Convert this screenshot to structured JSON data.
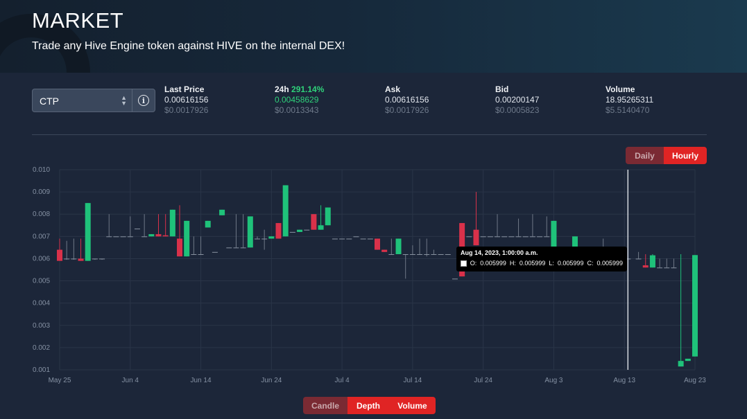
{
  "header": {
    "title": "MARKET",
    "subtitle": "Trade any Hive Engine token against HIVE on the internal DEX!"
  },
  "token": {
    "selected": "CTP"
  },
  "stats": [
    {
      "label": "Last Price",
      "pct": "",
      "value": "0.00616156",
      "usd": "$0.0017926"
    },
    {
      "label": "24h",
      "pct": "291.14%",
      "value": "0.00458629",
      "usd": "$0.0013343"
    },
    {
      "label": "Ask",
      "pct": "",
      "value": "0.00616156",
      "usd": "$0.0017926"
    },
    {
      "label": "Bid",
      "pct": "",
      "value": "0.00200147",
      "usd": "$0.0005823"
    },
    {
      "label": "Volume",
      "pct": "",
      "value": "18.95265311",
      "usd": "$5.5140470"
    }
  ],
  "interval_toggle": {
    "daily": "Daily",
    "hourly": "Hourly",
    "active": "Hourly"
  },
  "view_toggle": {
    "candle": "Candle",
    "depth": "Depth",
    "volume": "Volume",
    "active": "Depth"
  },
  "tooltip": {
    "title": "Aug 14, 2023, 1:00:00 a.m.",
    "o_label": "O:",
    "o": "0.005999",
    "h_label": "H:",
    "h": "0.005999",
    "l_label": "L:",
    "l": "0.005999",
    "c_label": "C:",
    "c": "0.005999"
  },
  "colors": {
    "up": "#1fc27a",
    "down": "#d9314a",
    "accent": "#e02424",
    "grid": "#2a3548"
  },
  "chart_data": {
    "type": "candlestick",
    "ylim": [
      0.001,
      0.01
    ],
    "yticks": [
      "0.010",
      "0.009",
      "0.008",
      "0.007",
      "0.006",
      "0.005",
      "0.004",
      "0.003",
      "0.002",
      "0.001"
    ],
    "xticks": [
      {
        "label": "May 25",
        "day": 0
      },
      {
        "label": "Jun 4",
        "day": 10
      },
      {
        "label": "Jun 14",
        "day": 20
      },
      {
        "label": "Jun 24",
        "day": 30
      },
      {
        "label": "Jul 4",
        "day": 40
      },
      {
        "label": "Jul 14",
        "day": 50
      },
      {
        "label": "Jul 24",
        "day": 60
      },
      {
        "label": "Aug 3",
        "day": 70
      },
      {
        "label": "Aug 13",
        "day": 80
      },
      {
        "label": "Aug 23",
        "day": 90
      }
    ],
    "crosshair_day": 80.5,
    "candles": [
      {
        "d": 0.0,
        "o": 0.0064,
        "h": 0.0069,
        "l": 0.0059,
        "c": 0.0059
      },
      {
        "d": 1.0,
        "o": 0.006,
        "h": 0.0068,
        "l": 0.00595,
        "c": 0.006
      },
      {
        "d": 2.0,
        "o": 0.006,
        "h": 0.0069,
        "l": 0.00595,
        "c": 0.006
      },
      {
        "d": 3.0,
        "o": 0.006,
        "h": 0.0069,
        "l": 0.0059,
        "c": 0.0059
      },
      {
        "d": 4.0,
        "o": 0.0059,
        "h": 0.0085,
        "l": 0.0059,
        "c": 0.0085
      },
      {
        "d": 5.0,
        "o": 0.006,
        "h": 0.006,
        "l": 0.00595,
        "c": 0.006
      },
      {
        "d": 6.0,
        "o": 0.006,
        "h": 0.006,
        "l": 0.00595,
        "c": 0.006
      },
      {
        "d": 7.0,
        "o": 0.007,
        "h": 0.008,
        "l": 0.007,
        "c": 0.007
      },
      {
        "d": 8.0,
        "o": 0.007,
        "h": 0.007,
        "l": 0.007,
        "c": 0.007
      },
      {
        "d": 9.0,
        "o": 0.007,
        "h": 0.007,
        "l": 0.007,
        "c": 0.007
      },
      {
        "d": 10.0,
        "o": 0.007,
        "h": 0.0079,
        "l": 0.007,
        "c": 0.007
      },
      {
        "d": 11.0,
        "o": 0.00735,
        "h": 0.00735,
        "l": 0.00735,
        "c": 0.00735
      },
      {
        "d": 12.0,
        "o": 0.007,
        "h": 0.008,
        "l": 0.007,
        "c": 0.007
      },
      {
        "d": 13.0,
        "o": 0.007,
        "h": 0.0071,
        "l": 0.007,
        "c": 0.0071
      },
      {
        "d": 14.0,
        "o": 0.0071,
        "h": 0.008,
        "l": 0.007,
        "c": 0.007
      },
      {
        "d": 15.0,
        "o": 0.00705,
        "h": 0.008,
        "l": 0.007,
        "c": 0.007
      },
      {
        "d": 16.0,
        "o": 0.007,
        "h": 0.0082,
        "l": 0.007,
        "c": 0.0082
      },
      {
        "d": 17.0,
        "o": 0.0069,
        "h": 0.0084,
        "l": 0.0061,
        "c": 0.0061
      },
      {
        "d": 18.0,
        "o": 0.0061,
        "h": 0.0077,
        "l": 0.0061,
        "c": 0.0077
      },
      {
        "d": 19.0,
        "o": 0.0062,
        "h": 0.007,
        "l": 0.0062,
        "c": 0.0062
      },
      {
        "d": 20.0,
        "o": 0.0062,
        "h": 0.007,
        "l": 0.0062,
        "c": 0.0062
      },
      {
        "d": 21.0,
        "o": 0.0074,
        "h": 0.0077,
        "l": 0.0074,
        "c": 0.0077
      },
      {
        "d": 22.0,
        "o": 0.0063,
        "h": 0.0063,
        "l": 0.0063,
        "c": 0.0063
      },
      {
        "d": 23.0,
        "o": 0.00795,
        "h": 0.0082,
        "l": 0.00795,
        "c": 0.0082
      },
      {
        "d": 24.0,
        "o": 0.0065,
        "h": 0.0065,
        "l": 0.0065,
        "c": 0.0065
      },
      {
        "d": 25.0,
        "o": 0.0065,
        "h": 0.008,
        "l": 0.0065,
        "c": 0.0065
      },
      {
        "d": 26.0,
        "o": 0.0065,
        "h": 0.008,
        "l": 0.0065,
        "c": 0.0065
      },
      {
        "d": 27.0,
        "o": 0.0065,
        "h": 0.0079,
        "l": 0.0065,
        "c": 0.0079
      },
      {
        "d": 28.0,
        "o": 0.0069,
        "h": 0.007,
        "l": 0.0069,
        "c": 0.0069
      },
      {
        "d": 29.0,
        "o": 0.0069,
        "h": 0.0073,
        "l": 0.0064,
        "c": 0.0069
      },
      {
        "d": 30.0,
        "o": 0.0069,
        "h": 0.007,
        "l": 0.0069,
        "c": 0.007
      },
      {
        "d": 31.0,
        "o": 0.0076,
        "h": 0.0076,
        "l": 0.0069,
        "c": 0.0069
      },
      {
        "d": 32.0,
        "o": 0.007,
        "h": 0.0093,
        "l": 0.007,
        "c": 0.0093
      },
      {
        "d": 33.0,
        "o": 0.0072,
        "h": 0.0072,
        "l": 0.0072,
        "c": 0.0072
      },
      {
        "d": 34.0,
        "o": 0.0072,
        "h": 0.0073,
        "l": 0.0072,
        "c": 0.0073
      },
      {
        "d": 35.0,
        "o": 0.0073,
        "h": 0.0073,
        "l": 0.0073,
        "c": 0.0073
      },
      {
        "d": 36.0,
        "o": 0.008,
        "h": 0.008,
        "l": 0.0073,
        "c": 0.0073
      },
      {
        "d": 37.0,
        "o": 0.0073,
        "h": 0.0084,
        "l": 0.0073,
        "c": 0.0075
      },
      {
        "d": 38.0,
        "o": 0.0075,
        "h": 0.0083,
        "l": 0.0075,
        "c": 0.0083
      },
      {
        "d": 39.0,
        "o": 0.0069,
        "h": 0.0069,
        "l": 0.0069,
        "c": 0.0069
      },
      {
        "d": 40.0,
        "o": 0.0069,
        "h": 0.0069,
        "l": 0.0069,
        "c": 0.0069
      },
      {
        "d": 41.0,
        "o": 0.0069,
        "h": 0.0069,
        "l": 0.0069,
        "c": 0.0069
      },
      {
        "d": 42.0,
        "o": 0.007,
        "h": 0.007,
        "l": 0.007,
        "c": 0.007
      },
      {
        "d": 43.0,
        "o": 0.0069,
        "h": 0.0069,
        "l": 0.0069,
        "c": 0.0069
      },
      {
        "d": 44.0,
        "o": 0.0069,
        "h": 0.0069,
        "l": 0.0069,
        "c": 0.0069
      },
      {
        "d": 45.0,
        "o": 0.0069,
        "h": 0.0069,
        "l": 0.0064,
        "c": 0.0064
      },
      {
        "d": 46.0,
        "o": 0.0064,
        "h": 0.0064,
        "l": 0.0063,
        "c": 0.0063
      },
      {
        "d": 47.0,
        "o": 0.0062,
        "h": 0.0069,
        "l": 0.0062,
        "c": 0.0062
      },
      {
        "d": 48.0,
        "o": 0.0062,
        "h": 0.0069,
        "l": 0.0062,
        "c": 0.0069
      },
      {
        "d": 49.0,
        "o": 0.0062,
        "h": 0.0062,
        "l": 0.0051,
        "c": 0.0062
      },
      {
        "d": 50.0,
        "o": 0.0062,
        "h": 0.0066,
        "l": 0.0062,
        "c": 0.0062
      },
      {
        "d": 51.0,
        "o": 0.0062,
        "h": 0.0069,
        "l": 0.0062,
        "c": 0.0062
      },
      {
        "d": 52.0,
        "o": 0.0062,
        "h": 0.0069,
        "l": 0.0061,
        "c": 0.0062
      },
      {
        "d": 53.0,
        "o": 0.0062,
        "h": 0.0064,
        "l": 0.0062,
        "c": 0.0062
      },
      {
        "d": 54.0,
        "o": 0.0062,
        "h": 0.0062,
        "l": 0.0062,
        "c": 0.0062
      },
      {
        "d": 55.0,
        "o": 0.0062,
        "h": 0.0062,
        "l": 0.0062,
        "c": 0.0062
      },
      {
        "d": 56.0,
        "o": 0.0051,
        "h": 0.0051,
        "l": 0.0051,
        "c": 0.0051
      },
      {
        "d": 57.0,
        "o": 0.0076,
        "h": 0.0076,
        "l": 0.0052,
        "c": 0.0052
      },
      {
        "d": 58.0,
        "o": 0.007,
        "h": 0.007,
        "l": 0.007,
        "c": 0.007
      },
      {
        "d": 59.0,
        "o": 0.0073,
        "h": 0.009,
        "l": 0.0066,
        "c": 0.0066
      },
      {
        "d": 60.0,
        "o": 0.007,
        "h": 0.007,
        "l": 0.007,
        "c": 0.007
      },
      {
        "d": 61.0,
        "o": 0.007,
        "h": 0.007,
        "l": 0.007,
        "c": 0.007
      },
      {
        "d": 62.0,
        "o": 0.007,
        "h": 0.008,
        "l": 0.007,
        "c": 0.007
      },
      {
        "d": 63.0,
        "o": 0.007,
        "h": 0.007,
        "l": 0.007,
        "c": 0.007
      },
      {
        "d": 64.0,
        "o": 0.007,
        "h": 0.007,
        "l": 0.007,
        "c": 0.007
      },
      {
        "d": 65.0,
        "o": 0.007,
        "h": 0.0078,
        "l": 0.007,
        "c": 0.007
      },
      {
        "d": 66.0,
        "o": 0.007,
        "h": 0.007,
        "l": 0.007,
        "c": 0.007
      },
      {
        "d": 67.0,
        "o": 0.007,
        "h": 0.008,
        "l": 0.007,
        "c": 0.007
      },
      {
        "d": 68.0,
        "o": 0.007,
        "h": 0.007,
        "l": 0.007,
        "c": 0.007
      },
      {
        "d": 69.0,
        "o": 0.007,
        "h": 0.0079,
        "l": 0.007,
        "c": 0.007
      },
      {
        "d": 70.0,
        "o": 0.0064,
        "h": 0.0077,
        "l": 0.0064,
        "c": 0.0077
      },
      {
        "d": 71.0,
        "o": 0.0065,
        "h": 0.0065,
        "l": 0.0065,
        "c": 0.0065
      },
      {
        "d": 72.0,
        "o": 0.0065,
        "h": 0.0065,
        "l": 0.0065,
        "c": 0.0065
      },
      {
        "d": 73.0,
        "o": 0.0064,
        "h": 0.007,
        "l": 0.0064,
        "c": 0.007
      },
      {
        "d": 74.0,
        "o": 0.0065,
        "h": 0.0065,
        "l": 0.0065,
        "c": 0.0065
      },
      {
        "d": 75.0,
        "o": 0.0065,
        "h": 0.0065,
        "l": 0.0065,
        "c": 0.0065
      },
      {
        "d": 76.0,
        "o": 0.0065,
        "h": 0.0065,
        "l": 0.0065,
        "c": 0.0065
      },
      {
        "d": 77.0,
        "o": 0.0065,
        "h": 0.0069,
        "l": 0.0065,
        "c": 0.0065
      },
      {
        "d": 78.0,
        "o": 0.0065,
        "h": 0.0065,
        "l": 0.0065,
        "c": 0.0065
      },
      {
        "d": 79.0,
        "o": 0.006,
        "h": 0.006,
        "l": 0.006,
        "c": 0.006
      },
      {
        "d": 80.5,
        "o": 0.006,
        "h": 0.006,
        "l": 0.006,
        "c": 0.006
      },
      {
        "d": 82.0,
        "o": 0.006,
        "h": 0.0063,
        "l": 0.006,
        "c": 0.006
      },
      {
        "d": 83.0,
        "o": 0.0057,
        "h": 0.0062,
        "l": 0.0056,
        "c": 0.0056
      },
      {
        "d": 84.0,
        "o": 0.0056,
        "h": 0.0062,
        "l": 0.0056,
        "c": 0.00615
      },
      {
        "d": 85.0,
        "o": 0.0056,
        "h": 0.006,
        "l": 0.0056,
        "c": 0.0056
      },
      {
        "d": 86.0,
        "o": 0.0056,
        "h": 0.006,
        "l": 0.0056,
        "c": 0.0056
      },
      {
        "d": 87.0,
        "o": 0.0056,
        "h": 0.006,
        "l": 0.0056,
        "c": 0.0056
      },
      {
        "d": 88.0,
        "o": 0.00115,
        "h": 0.0062,
        "l": 0.00115,
        "c": 0.0014
      },
      {
        "d": 89.0,
        "o": 0.0014,
        "h": 0.0015,
        "l": 0.0014,
        "c": 0.0015
      },
      {
        "d": 90.0,
        "o": 0.0016,
        "h": 0.00616,
        "l": 0.0016,
        "c": 0.00616
      }
    ]
  }
}
